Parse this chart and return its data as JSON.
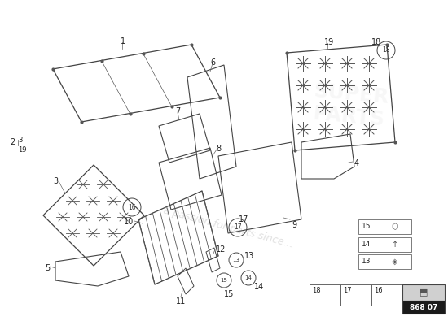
{
  "background_color": "#ffffff",
  "badge_text": "868 07",
  "badge_bg": "#1a1a1a",
  "badge_fg": "#ffffff",
  "watermark_text": "a passion for parts since...",
  "line_color": "#444444",
  "light_line": "#888888"
}
